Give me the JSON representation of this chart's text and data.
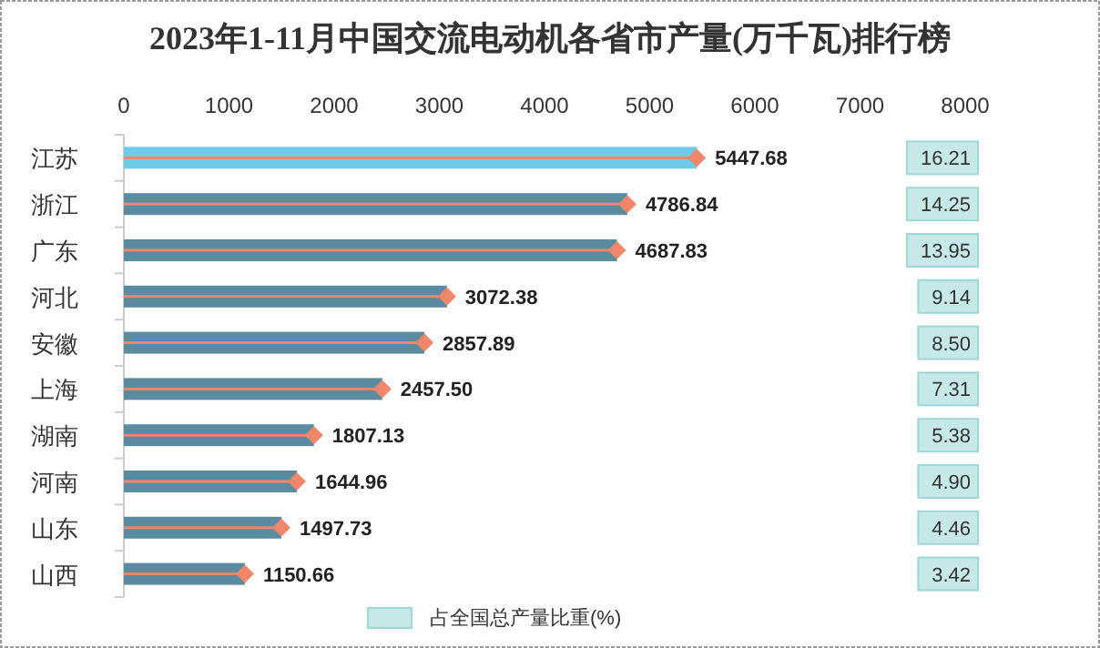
{
  "chart_data": [
    {
      "type": "bar",
      "orientation": "horizontal",
      "title": "2023年1-11月中国交流电动机各省市产量(万千瓦)排行榜",
      "categories": [
        "江苏",
        "浙江",
        "广东",
        "河北",
        "安徽",
        "上海",
        "湖南",
        "河南",
        "山东",
        "山西"
      ],
      "series": [
        {
          "colors": [
            "#6dcbe8",
            "#5b8ba1",
            "#5b8ba1",
            "#5b8ba1",
            "#5b8ba1",
            "#5b8ba1",
            "#5b8ba1",
            "#5b8ba1",
            "#5b8ba1",
            "#5b8ba1"
          ],
          "values": [
            5447.68,
            4786.84,
            4687.83,
            3072.38,
            2857.89,
            2457.5,
            1807.13,
            1644.96,
            1497.73,
            1150.66
          ],
          "value_labels": [
            "5447.68",
            "4786.84",
            "4687.83",
            "3072.38",
            "2857.89",
            "2457.50",
            "1807.13",
            "1644.96",
            "1497.73",
            "1150.66"
          ]
        },
        {
          "type": "lollipop",
          "color": "#f0866a",
          "values": [
            5447.68,
            4786.84,
            4687.83,
            3072.38,
            2857.89,
            2457.5,
            1807.13,
            1644.96,
            1497.73,
            1150.66
          ]
        }
      ],
      "xlim": [
        0,
        8000
      ],
      "xticks": [
        0,
        1000,
        2000,
        3000,
        4000,
        5000,
        6000,
        7000,
        8000
      ],
      "grid": false
    },
    {
      "type": "other",
      "series": [
        {
          "name": "占全国总产量比重(%)",
          "color": "#c6e8e8",
          "values": [
            16.21,
            14.25,
            13.95,
            9.14,
            8.5,
            7.31,
            5.38,
            4.9,
            4.46,
            3.42
          ],
          "value_labels": [
            "16.21",
            "14.25",
            "13.95",
            "9.14",
            "8.50",
            "7.31",
            "5.38",
            "4.90",
            "4.46",
            "3.42"
          ]
        }
      ],
      "legend": "bottom"
    }
  ]
}
